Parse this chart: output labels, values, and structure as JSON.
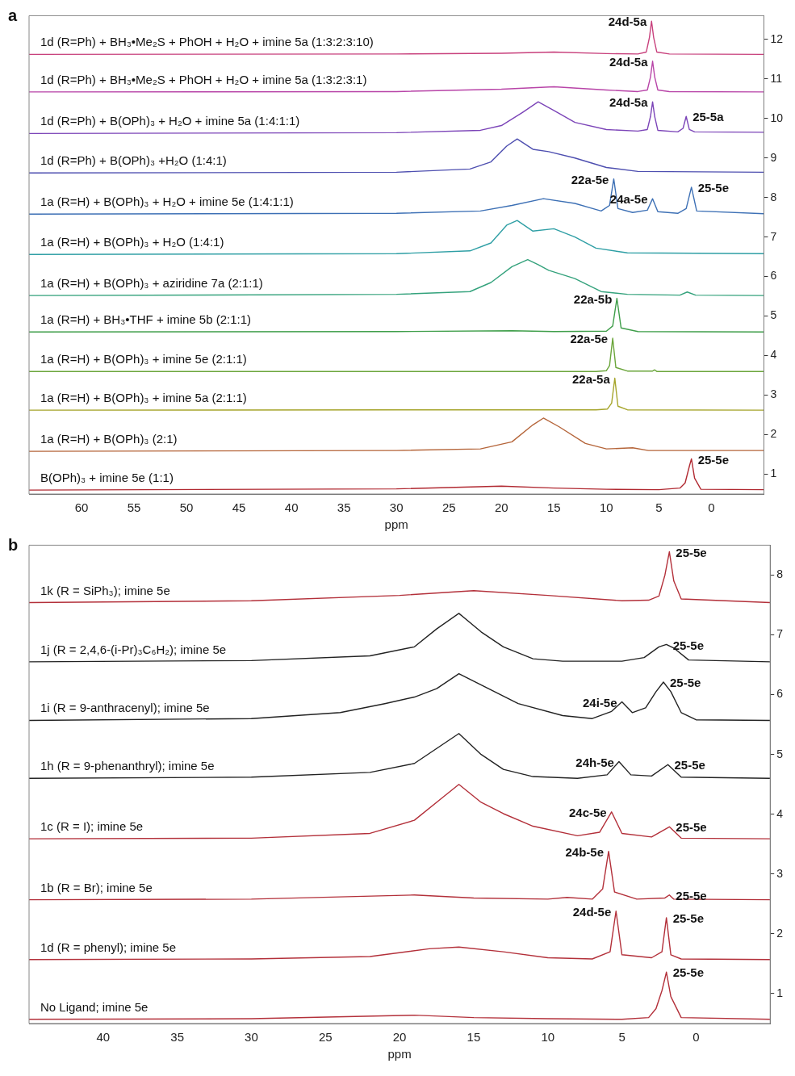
{
  "chart_data": [
    {
      "type": "line",
      "title": "a",
      "xlabel": "ppm",
      "xlim": [
        65,
        -5
      ],
      "xticks": [
        60,
        55,
        50,
        45,
        40,
        35,
        30,
        25,
        20,
        15,
        10,
        5,
        0
      ],
      "ylim": [
        0.5,
        12.6
      ],
      "yticks": [
        1,
        2,
        3,
        4,
        5,
        6,
        7,
        8,
        9,
        10,
        11,
        12
      ],
      "grid": false,
      "legend": false,
      "marker": "none",
      "series": [
        {
          "name": "1d (R=Ph) + BH₃•Me₂S + PhOH + H₂O + imine 5a (1:3:2:3:10)",
          "color": "#c8407c",
          "x": [
            65,
            30,
            20,
            15,
            10,
            7,
            6.2,
            5.9,
            5.7,
            5.5,
            5.2,
            4,
            -5
          ],
          "values": [
            11.62,
            11.63,
            11.65,
            11.68,
            11.64,
            11.63,
            11.68,
            12.05,
            12.46,
            12.05,
            11.68,
            11.63,
            11.62
          ]
        },
        {
          "name": "1d (R=Ph) + BH₃•Me₂S + PhOH + H₂O + imine 5a (1:3:2:3:1)",
          "color": "#b845a8",
          "x": [
            65,
            30,
            20,
            15,
            10,
            7,
            6.1,
            5.8,
            5.6,
            5.4,
            5.1,
            4,
            -5
          ],
          "values": [
            10.67,
            10.68,
            10.74,
            10.8,
            10.72,
            10.68,
            10.72,
            11.05,
            11.45,
            11.05,
            10.72,
            10.68,
            10.67
          ]
        },
        {
          "name": "1d (R=Ph) + B(OPh)₃ + H₂O + imine 5a (1:4:1:1)",
          "color": "#7c45b8",
          "x": [
            65,
            30,
            22,
            20,
            18,
            16.5,
            15,
            13,
            10,
            7,
            6.1,
            5.8,
            5.6,
            5.4,
            5.1,
            3.2,
            2.7,
            2.4,
            2.1,
            1.6,
            -5
          ],
          "values": [
            9.62,
            9.64,
            9.7,
            9.82,
            10.15,
            10.42,
            10.2,
            9.9,
            9.72,
            9.68,
            9.72,
            10.05,
            10.42,
            10.05,
            9.7,
            9.66,
            9.75,
            10.05,
            9.72,
            9.66,
            9.65
          ]
        },
        {
          "name": "1d (R=Ph) + B(OPh)₃ +H₂O (1:4:1)",
          "color": "#4e4fb0",
          "x": [
            65,
            30,
            23,
            21,
            19.5,
            18.5,
            17,
            15.5,
            13,
            10,
            7,
            -5
          ],
          "values": [
            8.62,
            8.64,
            8.72,
            8.9,
            9.3,
            9.48,
            9.22,
            9.16,
            9.0,
            8.76,
            8.66,
            8.64
          ]
        },
        {
          "name": "1a (R=H) + B(OPh)₃ + H₂O + imine 5e (1:4:1:1)",
          "color": "#3d70b5",
          "x": [
            65,
            30,
            22,
            19,
            16,
            13,
            10.5,
            9.7,
            9.3,
            8.9,
            7.5,
            6.1,
            5.6,
            5.1,
            3.2,
            2.4,
            1.9,
            1.4,
            -5
          ],
          "values": [
            7.58,
            7.6,
            7.66,
            7.8,
            7.97,
            7.85,
            7.66,
            7.8,
            8.47,
            7.72,
            7.62,
            7.68,
            7.97,
            7.64,
            7.6,
            7.72,
            8.26,
            7.66,
            7.59
          ]
        },
        {
          "name": "1a (R=H) + B(OPh)₃ + H₂O (1:4:1)",
          "color": "#2f9fa5",
          "x": [
            65,
            30,
            23,
            21,
            19.5,
            18.5,
            17,
            15,
            13,
            11,
            8,
            -5
          ],
          "values": [
            6.56,
            6.58,
            6.65,
            6.85,
            7.3,
            7.42,
            7.15,
            7.21,
            7.0,
            6.72,
            6.6,
            6.58
          ]
        },
        {
          "name": "1a (R=H) + B(OPh)₃ + aziridine 7a (2:1:1)",
          "color": "#34a27c",
          "x": [
            65,
            30,
            23,
            21,
            19,
            17.5,
            16.5,
            15.5,
            13,
            10.5,
            8,
            3,
            2.3,
            1.5,
            -5
          ],
          "values": [
            5.52,
            5.55,
            5.62,
            5.85,
            6.25,
            6.43,
            6.3,
            6.16,
            5.95,
            5.62,
            5.55,
            5.53,
            5.61,
            5.53,
            5.52
          ]
        },
        {
          "name": "1a (R=H) + BH₃•THF + imine 5b (2:1:1)",
          "color": "#3f9e4a",
          "x": [
            65,
            30,
            19,
            15,
            10,
            9.4,
            9.0,
            8.6,
            7,
            -5
          ],
          "values": [
            4.6,
            4.61,
            4.63,
            4.61,
            4.62,
            4.75,
            5.45,
            4.7,
            4.61,
            4.6
          ]
        },
        {
          "name": "1a (R=H) + B(OPh)₃ + imine 5e (2:1:1)",
          "color": "#6aa53a",
          "x": [
            65,
            30,
            15,
            11,
            10,
            9.7,
            9.4,
            9.1,
            8,
            5.6,
            5.4,
            5.2,
            -5
          ],
          "values": [
            3.6,
            3.6,
            3.6,
            3.6,
            3.62,
            3.75,
            4.44,
            3.7,
            3.61,
            3.61,
            3.64,
            3.6,
            3.6
          ]
        },
        {
          "name": "1a (R=H) + B(OPh)₃ + imine 5a (2:1:1)",
          "color": "#a6a52c",
          "x": [
            65,
            30,
            15,
            11,
            9.9,
            9.5,
            9.2,
            8.9,
            8,
            -5
          ],
          "values": [
            2.62,
            2.63,
            2.63,
            2.63,
            2.65,
            2.8,
            3.43,
            2.72,
            2.63,
            2.62
          ]
        },
        {
          "name": "1a (R=H) + B(OPh)₃ (2:1)",
          "color": "#b5653a",
          "x": [
            65,
            30,
            22,
            19,
            17,
            16,
            14.5,
            12,
            10,
            7.5,
            6,
            -5
          ],
          "values": [
            1.58,
            1.6,
            1.64,
            1.82,
            2.25,
            2.42,
            2.2,
            1.78,
            1.64,
            1.67,
            1.6,
            1.6
          ]
        },
        {
          "name": "B(OPh)₃ + imine 5e (1:1)",
          "color": "#b12a32",
          "x": [
            65,
            30,
            20,
            15,
            10,
            5,
            3,
            2.5,
            2.1,
            1.9,
            1.6,
            1,
            -5
          ],
          "values": [
            0.6,
            0.63,
            0.7,
            0.65,
            0.62,
            0.61,
            0.65,
            0.78,
            1.2,
            1.39,
            0.9,
            0.62,
            0.61
          ]
        }
      ],
      "annotations": [
        {
          "text": "24d-5a",
          "x": 5.7,
          "y": 12.46
        },
        {
          "text": "24d-5a",
          "x": 5.6,
          "y": 11.45
        },
        {
          "text": "24d-5a",
          "x": 5.6,
          "y": 10.42
        },
        {
          "text": "25-5a",
          "x": 2.4,
          "y": 10.05
        },
        {
          "text": "22a-5e",
          "x": 9.3,
          "y": 8.47
        },
        {
          "text": "24a-5e",
          "x": 5.6,
          "y": 7.97
        },
        {
          "text": "25-5e",
          "x": 1.9,
          "y": 8.26
        },
        {
          "text": "22a-5b",
          "x": 9.0,
          "y": 5.45
        },
        {
          "text": "22a-5e",
          "x": 9.4,
          "y": 4.44
        },
        {
          "text": "22a-5a",
          "x": 9.2,
          "y": 3.43
        },
        {
          "text": "25-5e",
          "x": 1.9,
          "y": 1.39
        }
      ]
    },
    {
      "type": "line",
      "title": "b",
      "xlabel": "ppm",
      "xlim": [
        45,
        -5
      ],
      "xticks": [
        40,
        35,
        30,
        25,
        20,
        15,
        10,
        5,
        0
      ],
      "ylim": [
        0.5,
        8.5
      ],
      "yticks": [
        1,
        2,
        3,
        4,
        5,
        6,
        7,
        8
      ],
      "grid": false,
      "legend": false,
      "marker": "none",
      "series": [
        {
          "name": "1k (R = SiPh₃); imine 5e",
          "color": "#b3303a",
          "x": [
            45,
            30,
            20,
            15,
            10,
            5,
            3.2,
            2.5,
            2.1,
            1.8,
            1.5,
            1,
            -5
          ],
          "values": [
            7.54,
            7.57,
            7.66,
            7.74,
            7.66,
            7.57,
            7.58,
            7.65,
            8.0,
            8.39,
            7.9,
            7.6,
            7.54
          ]
        },
        {
          "name": "1j (R = 2,4,6-(i-Pr)₃C₆H₂); imine 5e",
          "color": "#222222",
          "x": [
            45,
            30,
            22,
            19,
            17.5,
            16,
            14.5,
            13,
            11,
            9,
            5,
            3.5,
            2.5,
            2,
            1.5,
            0.5,
            -5
          ],
          "values": [
            6.55,
            6.57,
            6.65,
            6.8,
            7.1,
            7.36,
            7.05,
            6.8,
            6.6,
            6.56,
            6.56,
            6.62,
            6.8,
            6.84,
            6.78,
            6.58,
            6.55
          ]
        },
        {
          "name": "1i (R = 9-anthracenyl); imine 5e",
          "color": "#222222",
          "x": [
            45,
            30,
            24,
            21,
            19,
            17.5,
            16,
            14,
            12,
            9,
            7,
            5.7,
            5,
            4.3,
            3.4,
            2.7,
            2.2,
            1.7,
            1,
            0,
            -5
          ],
          "values": [
            5.57,
            5.6,
            5.7,
            5.85,
            5.96,
            6.1,
            6.35,
            6.1,
            5.85,
            5.65,
            5.6,
            5.72,
            5.88,
            5.7,
            5.78,
            6.05,
            6.21,
            6.05,
            5.7,
            5.58,
            5.57
          ]
        },
        {
          "name": "1h (R = 9-phenanthryl); imine 5e",
          "color": "#222222",
          "x": [
            45,
            30,
            22,
            19,
            17.5,
            16,
            14.5,
            13,
            11,
            8,
            6,
            5.2,
            4.4,
            3,
            1.9,
            1,
            -5
          ],
          "values": [
            4.6,
            4.62,
            4.7,
            4.85,
            5.1,
            5.35,
            5.0,
            4.75,
            4.63,
            4.6,
            4.66,
            4.88,
            4.66,
            4.64,
            4.83,
            4.62,
            4.6
          ]
        },
        {
          "name": "1c (R = I); imine 5e",
          "color": "#b3303a",
          "x": [
            45,
            30,
            22,
            19,
            17,
            16,
            14.5,
            13,
            11,
            8,
            6.5,
            5.7,
            5,
            3,
            1.8,
            1,
            -5
          ],
          "values": [
            3.59,
            3.6,
            3.68,
            3.9,
            4.3,
            4.5,
            4.2,
            4.01,
            3.8,
            3.64,
            3.7,
            4.04,
            3.68,
            3.62,
            3.79,
            3.6,
            3.59
          ]
        },
        {
          "name": "1b (R = Br); imine 5e",
          "color": "#b3303a",
          "x": [
            45,
            30,
            19,
            15,
            10,
            8.7,
            7,
            6.3,
            5.9,
            5.5,
            4,
            2.1,
            1.8,
            1.5,
            -5
          ],
          "values": [
            2.57,
            2.58,
            2.65,
            2.6,
            2.58,
            2.61,
            2.58,
            2.75,
            3.38,
            2.7,
            2.58,
            2.6,
            2.65,
            2.58,
            2.57
          ]
        },
        {
          "name": "1d (R = phenyl); imine 5e",
          "color": "#b3303a",
          "x": [
            45,
            30,
            22,
            18,
            16,
            13,
            10,
            7,
            5.8,
            5.4,
            5,
            3,
            2.3,
            2.0,
            1.7,
            1,
            -5
          ],
          "values": [
            1.57,
            1.58,
            1.62,
            1.75,
            1.78,
            1.7,
            1.6,
            1.58,
            1.7,
            2.38,
            1.65,
            1.6,
            1.7,
            2.27,
            1.65,
            1.58,
            1.57
          ]
        },
        {
          "name": "No Ligand; imine 5e",
          "color": "#b3303a",
          "x": [
            45,
            30,
            19,
            15,
            10,
            5,
            3.2,
            2.7,
            2.3,
            2.0,
            1.7,
            1,
            -5
          ],
          "values": [
            0.57,
            0.58,
            0.64,
            0.6,
            0.58,
            0.57,
            0.6,
            0.75,
            1.05,
            1.36,
            0.95,
            0.6,
            0.57
          ]
        }
      ],
      "annotations": [
        {
          "text": "25-5e",
          "x": 1.8,
          "y": 8.39
        },
        {
          "text": "25-5e",
          "x": 2,
          "y": 6.84
        },
        {
          "text": "24i-5e",
          "x": 5,
          "y": 5.88
        },
        {
          "text": "25-5e",
          "x": 2.2,
          "y": 6.21
        },
        {
          "text": "24h-5e",
          "x": 5.2,
          "y": 4.88
        },
        {
          "text": "25-5e",
          "x": 1.9,
          "y": 4.83
        },
        {
          "text": "24c-5e",
          "x": 5.7,
          "y": 4.04
        },
        {
          "text": "25-5e",
          "x": 1.8,
          "y": 3.79
        },
        {
          "text": "24b-5e",
          "x": 5.9,
          "y": 3.38
        },
        {
          "text": "25-5e",
          "x": 1.8,
          "y": 2.65
        },
        {
          "text": "24d-5e",
          "x": 5.4,
          "y": 2.38
        },
        {
          "text": "25-5e",
          "x": 2.0,
          "y": 2.27
        },
        {
          "text": "25-5e",
          "x": 2.0,
          "y": 1.36
        }
      ]
    }
  ]
}
